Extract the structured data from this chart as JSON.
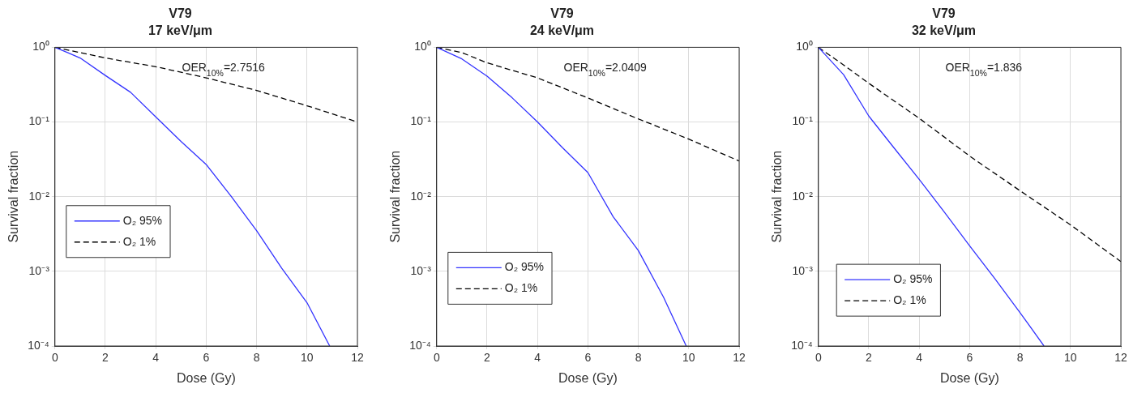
{
  "chart_data": [
    {
      "type": "line",
      "title": "V79",
      "subtitle": "17 keV/μm",
      "xlabel": "Dose (Gy)",
      "ylabel": "Survival fraction",
      "log": "y",
      "grid": true,
      "legend": "left",
      "xlim": [
        0,
        12
      ],
      "xticks": [
        0,
        2,
        4,
        6,
        8,
        10,
        12
      ],
      "ylim": [
        0.0001,
        1
      ],
      "yticks": [
        {
          "value": 0.0001,
          "label": "10⁻⁴"
        },
        {
          "value": 0.001,
          "label": "10⁻³"
        },
        {
          "value": 0.01,
          "label": "10⁻²"
        },
        {
          "value": 0.1,
          "label": "10⁻¹"
        },
        {
          "value": 1,
          "label": "10⁰"
        }
      ],
      "annotations": [
        "OER$_{10%}$=2.7516"
      ],
      "series": [
        {
          "name": "O₂ 95%",
          "color": "#3333ff",
          "line_style": "solid",
          "x": [
            0,
            0.5,
            1,
            2,
            3,
            4,
            5,
            6,
            7,
            8,
            9,
            10,
            10.9
          ],
          "values": [
            1,
            0.85,
            0.72,
            0.42,
            0.25,
            0.117,
            0.055,
            0.027,
            0.01,
            0.0035,
            0.0011,
            0.00038,
            0.0001
          ]
        },
        {
          "name": "O₂ 1%",
          "color": "#000000",
          "line_style": "dashed",
          "x": [
            0,
            1,
            2,
            4,
            6,
            8,
            10,
            12
          ],
          "values": [
            1,
            0.85,
            0.72,
            0.55,
            0.39,
            0.265,
            0.165,
            0.1
          ]
        }
      ]
    },
    {
      "type": "line",
      "title": "V79",
      "subtitle": "24 keV/μm",
      "xlabel": "Dose (Gy)",
      "ylabel": "Survival fraction",
      "log": "y",
      "grid": true,
      "legend": "bottom left",
      "xlim": [
        0,
        12
      ],
      "xticks": [
        0,
        2,
        4,
        6,
        8,
        10,
        12
      ],
      "ylim": [
        0.0001,
        1
      ],
      "yticks": [
        {
          "value": 0.0001,
          "label": "10⁻⁴"
        },
        {
          "value": 0.001,
          "label": "10⁻³"
        },
        {
          "value": 0.01,
          "label": "10⁻²"
        },
        {
          "value": 0.1,
          "label": "10⁻¹"
        },
        {
          "value": 1,
          "label": "10⁰"
        }
      ],
      "annotations": [
        "OER$_{10%}$=2.0409"
      ],
      "series": [
        {
          "name": "O₂ 95%",
          "color": "#3333ff",
          "line_style": "solid",
          "x": [
            0,
            1,
            2,
            3,
            4,
            5,
            6,
            7,
            8,
            9,
            9.9
          ],
          "values": [
            1,
            0.7,
            0.41,
            0.21,
            0.1,
            0.045,
            0.021,
            0.0054,
            0.0019,
            0.00045,
            0.0001
          ]
        },
        {
          "name": "O₂ 1%",
          "color": "#000000",
          "line_style": "dashed",
          "x": [
            0,
            1,
            2,
            4,
            6,
            8,
            10,
            12
          ],
          "values": [
            1,
            0.85,
            0.62,
            0.39,
            0.21,
            0.11,
            0.059,
            0.03
          ]
        }
      ]
    },
    {
      "type": "line",
      "title": "V79",
      "subtitle": "32 keV/μm",
      "xlabel": "Dose (Gy)",
      "ylabel": "Survival fraction",
      "log": "y",
      "grid": true,
      "legend": "bottom",
      "xlim": [
        0,
        12
      ],
      "xticks": [
        0,
        2,
        4,
        6,
        8,
        10,
        12
      ],
      "ylim": [
        0.0001,
        1
      ],
      "yticks": [
        {
          "value": 0.0001,
          "label": "10⁻⁴"
        },
        {
          "value": 0.001,
          "label": "10⁻³"
        },
        {
          "value": 0.01,
          "label": "10⁻²"
        },
        {
          "value": 0.1,
          "label": "10⁻¹"
        },
        {
          "value": 1,
          "label": "10⁰"
        }
      ],
      "annotations": [
        "OER$_{10%}$=1.836"
      ],
      "series": [
        {
          "name": "O₂ 95%",
          "color": "#3333ff",
          "line_style": "solid",
          "x": [
            0,
            1,
            2,
            3,
            4,
            5,
            6,
            7,
            8,
            8.95
          ],
          "values": [
            1,
            0.43,
            0.12,
            0.045,
            0.017,
            0.0062,
            0.0022,
            0.0008,
            0.00028,
            0.0001
          ]
        },
        {
          "name": "O₂ 1%",
          "color": "#000000",
          "line_style": "dashed",
          "x": [
            0,
            1,
            2,
            4,
            6,
            8,
            10,
            12
          ],
          "values": [
            1,
            0.58,
            0.33,
            0.112,
            0.035,
            0.012,
            0.0042,
            0.00135
          ]
        }
      ]
    }
  ]
}
